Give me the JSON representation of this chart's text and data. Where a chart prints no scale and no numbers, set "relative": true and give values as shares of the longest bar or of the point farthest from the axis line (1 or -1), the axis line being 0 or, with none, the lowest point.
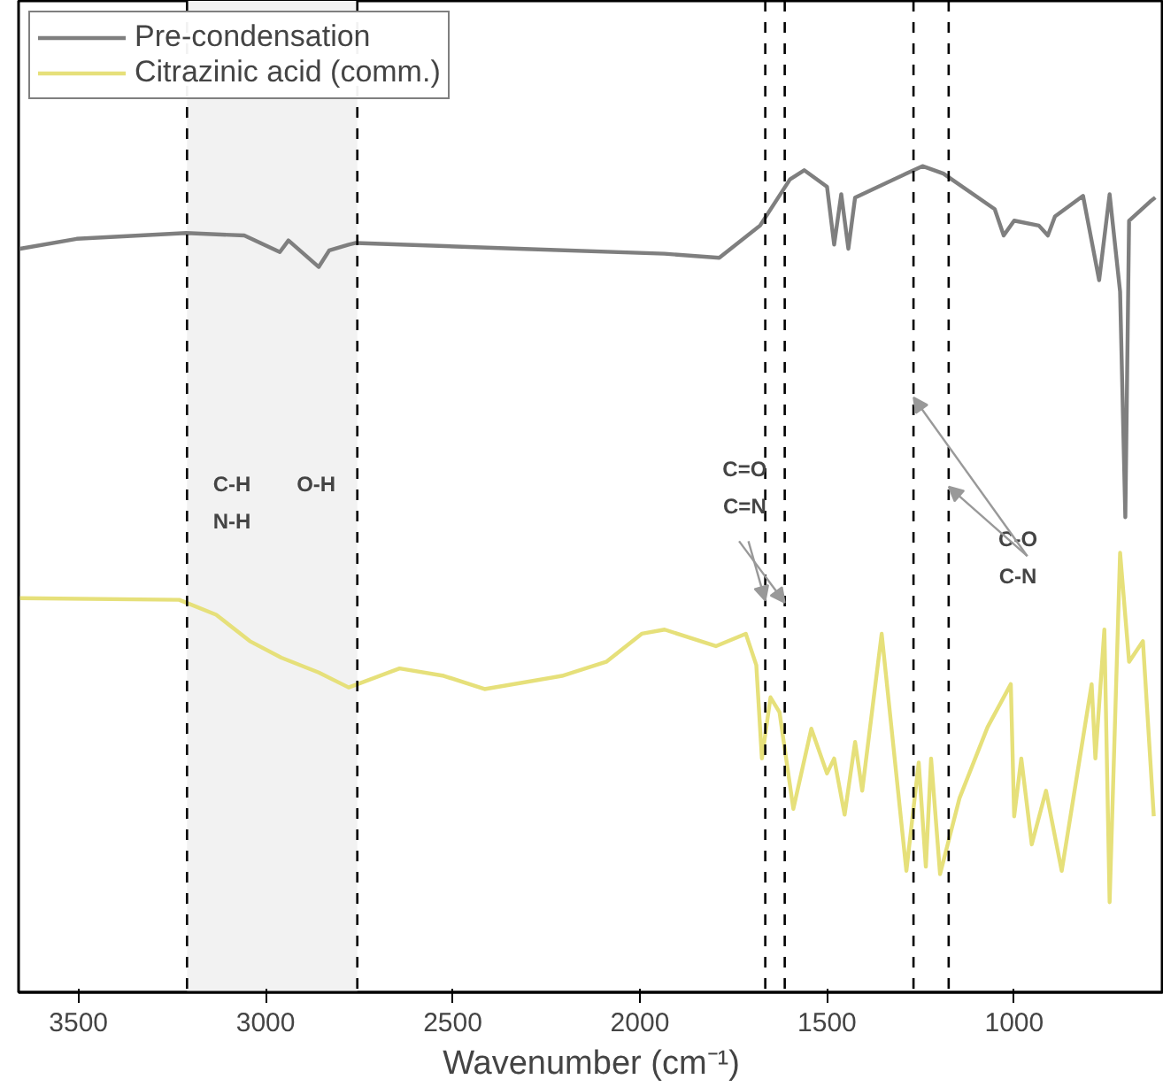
{
  "chart_data": {
    "type": "line",
    "relative": true,
    "xlabel": "Wavenumber (cm⁻¹)",
    "xlim": [
      3660,
      600
    ],
    "xticks": [
      3500,
      3000,
      2500,
      2000,
      1500,
      1000
    ],
    "series": [
      {
        "name": "Pre-condensation",
        "color": "#7f7f7f",
        "x": [
          3656,
          3505,
          3212,
          3057,
          2962,
          2939,
          2858,
          2830,
          2778,
          2759,
          2325,
          1934,
          1788,
          1679,
          1599,
          1561,
          1500,
          1481,
          1462,
          1443,
          1425,
          1288,
          1245,
          1189,
          1052,
          1028,
          1000,
          934,
          910,
          891,
          816,
          773,
          745,
          717,
          703,
          693,
          637,
          623
        ],
        "values": [
          0.9,
          0.912,
          0.919,
          0.916,
          0.896,
          0.91,
          0.878,
          0.898,
          0.905,
          0.907,
          0.9,
          0.894,
          0.889,
          0.928,
          0.984,
          0.995,
          0.975,
          0.905,
          0.966,
          0.9,
          0.962,
          0.991,
          1.0,
          0.991,
          0.948,
          0.916,
          0.934,
          0.928,
          0.916,
          0.939,
          0.964,
          0.862,
          0.966,
          0.848,
          0.575,
          0.934,
          0.957,
          0.962
        ]
      },
      {
        "name": "Citrazinic acid (comm.)",
        "color": "#e6e07a",
        "x": [
          3656,
          3231,
          3132,
          3042,
          2958,
          2858,
          2778,
          2642,
          2524,
          2415,
          2208,
          2090,
          1995,
          1934,
          1797,
          1717,
          1689,
          1674,
          1651,
          1627,
          1590,
          1542,
          1500,
          1481,
          1453,
          1425,
          1406,
          1354,
          1288,
          1255,
          1236,
          1222,
          1198,
          1146,
          1071,
          1009,
          1000,
          981,
          953,
          915,
          873,
          793,
          783,
          759,
          745,
          717,
          693,
          656,
          627
        ],
        "values": [
          0.477,
          0.475,
          0.457,
          0.425,
          0.405,
          0.387,
          0.369,
          0.392,
          0.383,
          0.367,
          0.383,
          0.4,
          0.434,
          0.439,
          0.419,
          0.434,
          0.396,
          0.283,
          0.357,
          0.339,
          0.222,
          0.319,
          0.265,
          0.283,
          0.215,
          0.303,
          0.244,
          0.434,
          0.147,
          0.278,
          0.152,
          0.283,
          0.143,
          0.235,
          0.321,
          0.373,
          0.213,
          0.283,
          0.179,
          0.244,
          0.147,
          0.373,
          0.283,
          0.439,
          0.109,
          0.532,
          0.4,
          0.425,
          0.213
        ]
      }
    ],
    "ref_lines": [
      {
        "axis": "x",
        "value": 3210,
        "line_style": "dashed",
        "color": "#000000"
      },
      {
        "axis": "x",
        "value": 2755,
        "line_style": "dashed",
        "color": "#000000"
      },
      {
        "axis": "x",
        "value": 1665,
        "line_style": "dashed",
        "color": "#000000"
      },
      {
        "axis": "x",
        "value": 1613,
        "line_style": "dashed",
        "color": "#000000"
      },
      {
        "axis": "x",
        "value": 1269,
        "line_style": "dashed",
        "color": "#000000"
      },
      {
        "axis": "x",
        "value": 1175,
        "line_style": "dashed",
        "color": "#000000"
      }
    ],
    "bands": [
      {
        "axis": "x",
        "from": 3210,
        "to": 2755,
        "color": "#f2f2f2"
      }
    ],
    "annotations": [
      "C-H\nN-H",
      "O-H",
      "C=O\nC=N",
      "C-O\nC-N"
    ],
    "legend": "top left",
    "grid": false,
    "line_style": "solid"
  }
}
